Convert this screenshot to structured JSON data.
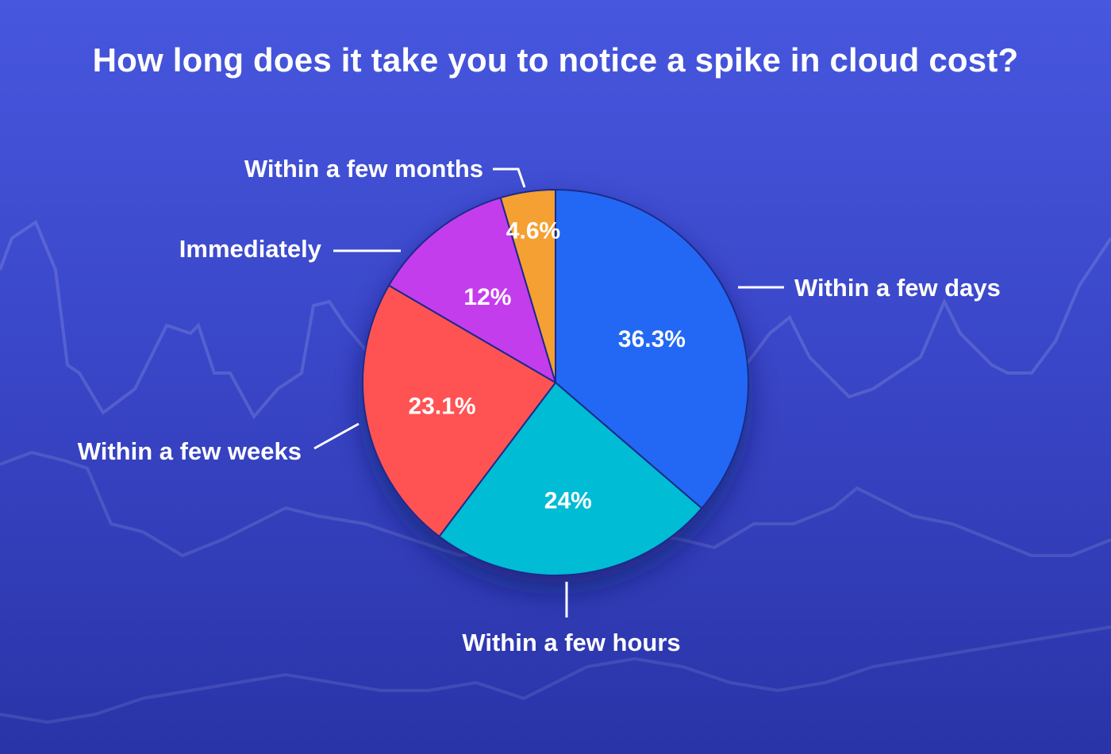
{
  "chart_data": {
    "type": "pie",
    "title": "How long does it take you to notice a spike in cloud cost?",
    "slices": [
      {
        "label": "Within a few days",
        "value": 36.3,
        "display": "36.3%",
        "color": "#2468f5"
      },
      {
        "label": "Within a few hours",
        "value": 24,
        "display": "24%",
        "color": "#00bcd4"
      },
      {
        "label": "Within a few weeks",
        "value": 23.1,
        "display": "23.1%",
        "color": "#ff5252"
      },
      {
        "label": "Immediately",
        "value": 12,
        "display": "12%",
        "color": "#c43ded"
      },
      {
        "label": "Within a few months",
        "value": 4.6,
        "display": "4.6%",
        "color": "#f5a033"
      }
    ],
    "start_angle_deg": 0,
    "direction": "clockwise",
    "legend": "none"
  },
  "colors": {
    "background_top": "#4757de",
    "background_bottom": "#2a34a8",
    "slice_border": "#1e2a8a",
    "text": "#ffffff"
  }
}
